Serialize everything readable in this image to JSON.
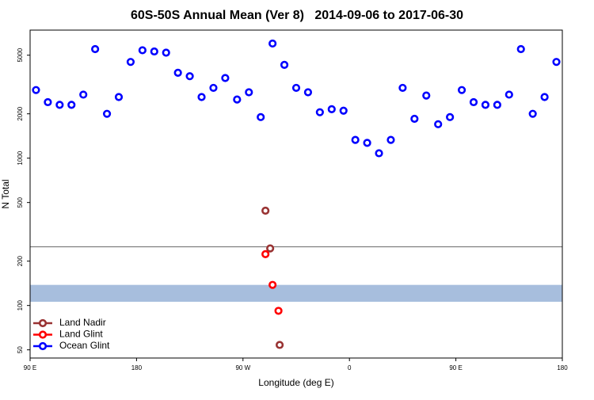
{
  "chart_data": {
    "type": "scatter",
    "title": "60S-50S Annual Mean (Ver 8)   2014-09-06 to 2017-06-30",
    "xlabel": "Longitude (deg E)",
    "ylabel": "N Total",
    "xlim": [
      90,
      540
    ],
    "xticks": [
      {
        "value": 90,
        "label": "90 E"
      },
      180,
      {
        "value": 270,
        "label": "90 W"
      },
      {
        "value": 360,
        "label": "0"
      },
      {
        "value": 450,
        "label": "90 E"
      },
      {
        "value": 540,
        "label": "180"
      }
    ],
    "ylim": [
      44,
      7400
    ],
    "log_y": true,
    "yticks": [
      50,
      100,
      200,
      500,
      1000,
      2000,
      5000
    ],
    "reference_line": 250,
    "reference_line_color": "#666666",
    "band": [
      106,
      138
    ],
    "band_color": "#a7bedd",
    "legend": "lower left",
    "series": [
      {
        "name": "Land Nadir",
        "color": "#993333",
        "x": [
          289,
          293,
          301
        ],
        "values": [
          440,
          244,
          54
        ]
      },
      {
        "name": "Land Glint",
        "color": "#ff0000",
        "x": [
          289,
          295,
          300
        ],
        "values": [
          223,
          138,
          92
        ]
      },
      {
        "name": "Ocean Glint",
        "color": "#0000ff",
        "x": [
          95,
          105,
          115,
          125,
          135,
          145,
          155,
          165,
          175,
          185,
          195,
          205,
          215,
          225,
          235,
          245,
          255,
          265,
          275,
          285,
          295,
          305,
          315,
          325,
          335,
          345,
          355,
          365,
          375,
          385,
          395,
          405,
          415,
          425,
          435,
          445,
          455,
          465,
          475,
          485,
          495,
          505,
          515,
          525,
          535
        ],
        "values": [
          2900,
          2400,
          2300,
          2300,
          2700,
          5500,
          2000,
          2600,
          4500,
          5400,
          5300,
          5200,
          3800,
          3600,
          2600,
          3000,
          3500,
          2500,
          2800,
          1900,
          6000,
          4300,
          3000,
          2800,
          2050,
          2150,
          2100,
          1330,
          1270,
          1080,
          1330,
          3000,
          1850,
          2660,
          1700,
          1900,
          2900,
          2400,
          2300,
          2300,
          2700,
          5500,
          2000,
          2600,
          4500
        ]
      }
    ]
  }
}
